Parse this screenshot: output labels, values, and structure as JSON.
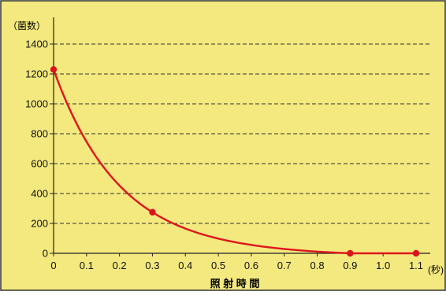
{
  "colors": {
    "background": "#f3e97e",
    "border": "#333333",
    "grid": "#333333",
    "axis": "#222222",
    "curve": "#e0141e",
    "point": "#d8141c",
    "text": "#111111"
  },
  "chart_data": {
    "type": "line",
    "title": "",
    "xlabel": "照 射 時 間",
    "ylabel": "（菌数）",
    "x_unit": "(秒)",
    "xlim": [
      0,
      1.1
    ],
    "ylim": [
      0,
      1400
    ],
    "x_ticks": [
      0,
      0.1,
      0.2,
      0.3,
      0.4,
      0.5,
      0.6,
      0.7,
      0.8,
      0.9,
      1.0,
      1.1
    ],
    "x_tick_labels": [
      "0",
      "0.1",
      "0.2",
      "0.3",
      "0.4",
      "0.5",
      "0.6",
      "0.7",
      "0.8",
      "0.9",
      "1.0",
      "1.1"
    ],
    "y_ticks": [
      0,
      200,
      400,
      600,
      800,
      1000,
      1200,
      1400
    ],
    "y_tick_labels": [
      "0",
      "200",
      "400",
      "600",
      "800",
      "1000",
      "1200",
      "1400"
    ],
    "grid": "horizontal-dashed",
    "legend": "none",
    "series": [
      {
        "curve": "smooth-decay",
        "points": [
          {
            "x": 0,
            "y": 1230
          },
          {
            "x": 0.3,
            "y": 275
          },
          {
            "x": 0.9,
            "y": 0
          },
          {
            "x": 1.1,
            "y": 0
          }
        ]
      }
    ]
  }
}
